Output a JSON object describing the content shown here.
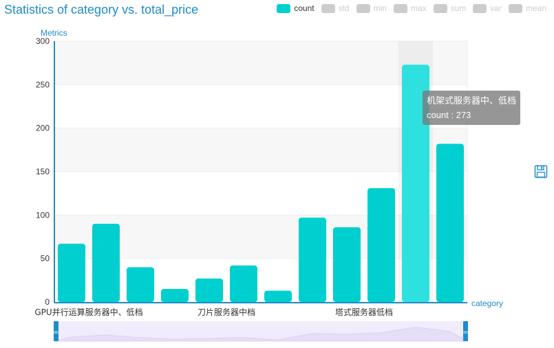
{
  "title": "Statistics of category vs. total_price",
  "legend": {
    "items": [
      {
        "label": "count",
        "active": true
      },
      {
        "label": "std",
        "active": false
      },
      {
        "label": "min",
        "active": false
      },
      {
        "label": "max",
        "active": false
      },
      {
        "label": "sum",
        "active": false
      },
      {
        "label": "var",
        "active": false
      },
      {
        "label": "mean",
        "active": false
      }
    ]
  },
  "colors": {
    "bar": "#00cfcf",
    "bar_highlight": "#2ee0e0",
    "axis": "#1e8cc8",
    "title": "#1e8cc8"
  },
  "tooltip": {
    "line1": "机架式服务器中、低档",
    "line2": "count : 273"
  },
  "chart_data": {
    "type": "bar",
    "title": "Statistics of category vs. total_price",
    "xlabel": "category",
    "ylabel": "Metrics",
    "ylim": [
      0,
      300
    ],
    "yticks": [
      0,
      50,
      100,
      150,
      200,
      250,
      300
    ],
    "x_tick_labels": [
      {
        "index": 0,
        "text": "GPU并行运算服务器中、低档"
      },
      {
        "index": 4,
        "text": "刀片服务器中档"
      },
      {
        "index": 8,
        "text": "塔式服务器低档"
      }
    ],
    "highlighted_index": 10,
    "series": [
      {
        "name": "count",
        "values": [
          67,
          90,
          40,
          15,
          27,
          42,
          13,
          97,
          86,
          131,
          273,
          182
        ]
      }
    ],
    "grid": true,
    "legend_position": "top-right",
    "has_data_zoom": true,
    "data_zoom_sparkline": [
      0.3,
      0.45,
      0.25,
      0.15,
      0.2,
      0.25,
      0.1,
      0.55,
      0.5,
      0.6,
      1.0,
      0.7
    ]
  }
}
